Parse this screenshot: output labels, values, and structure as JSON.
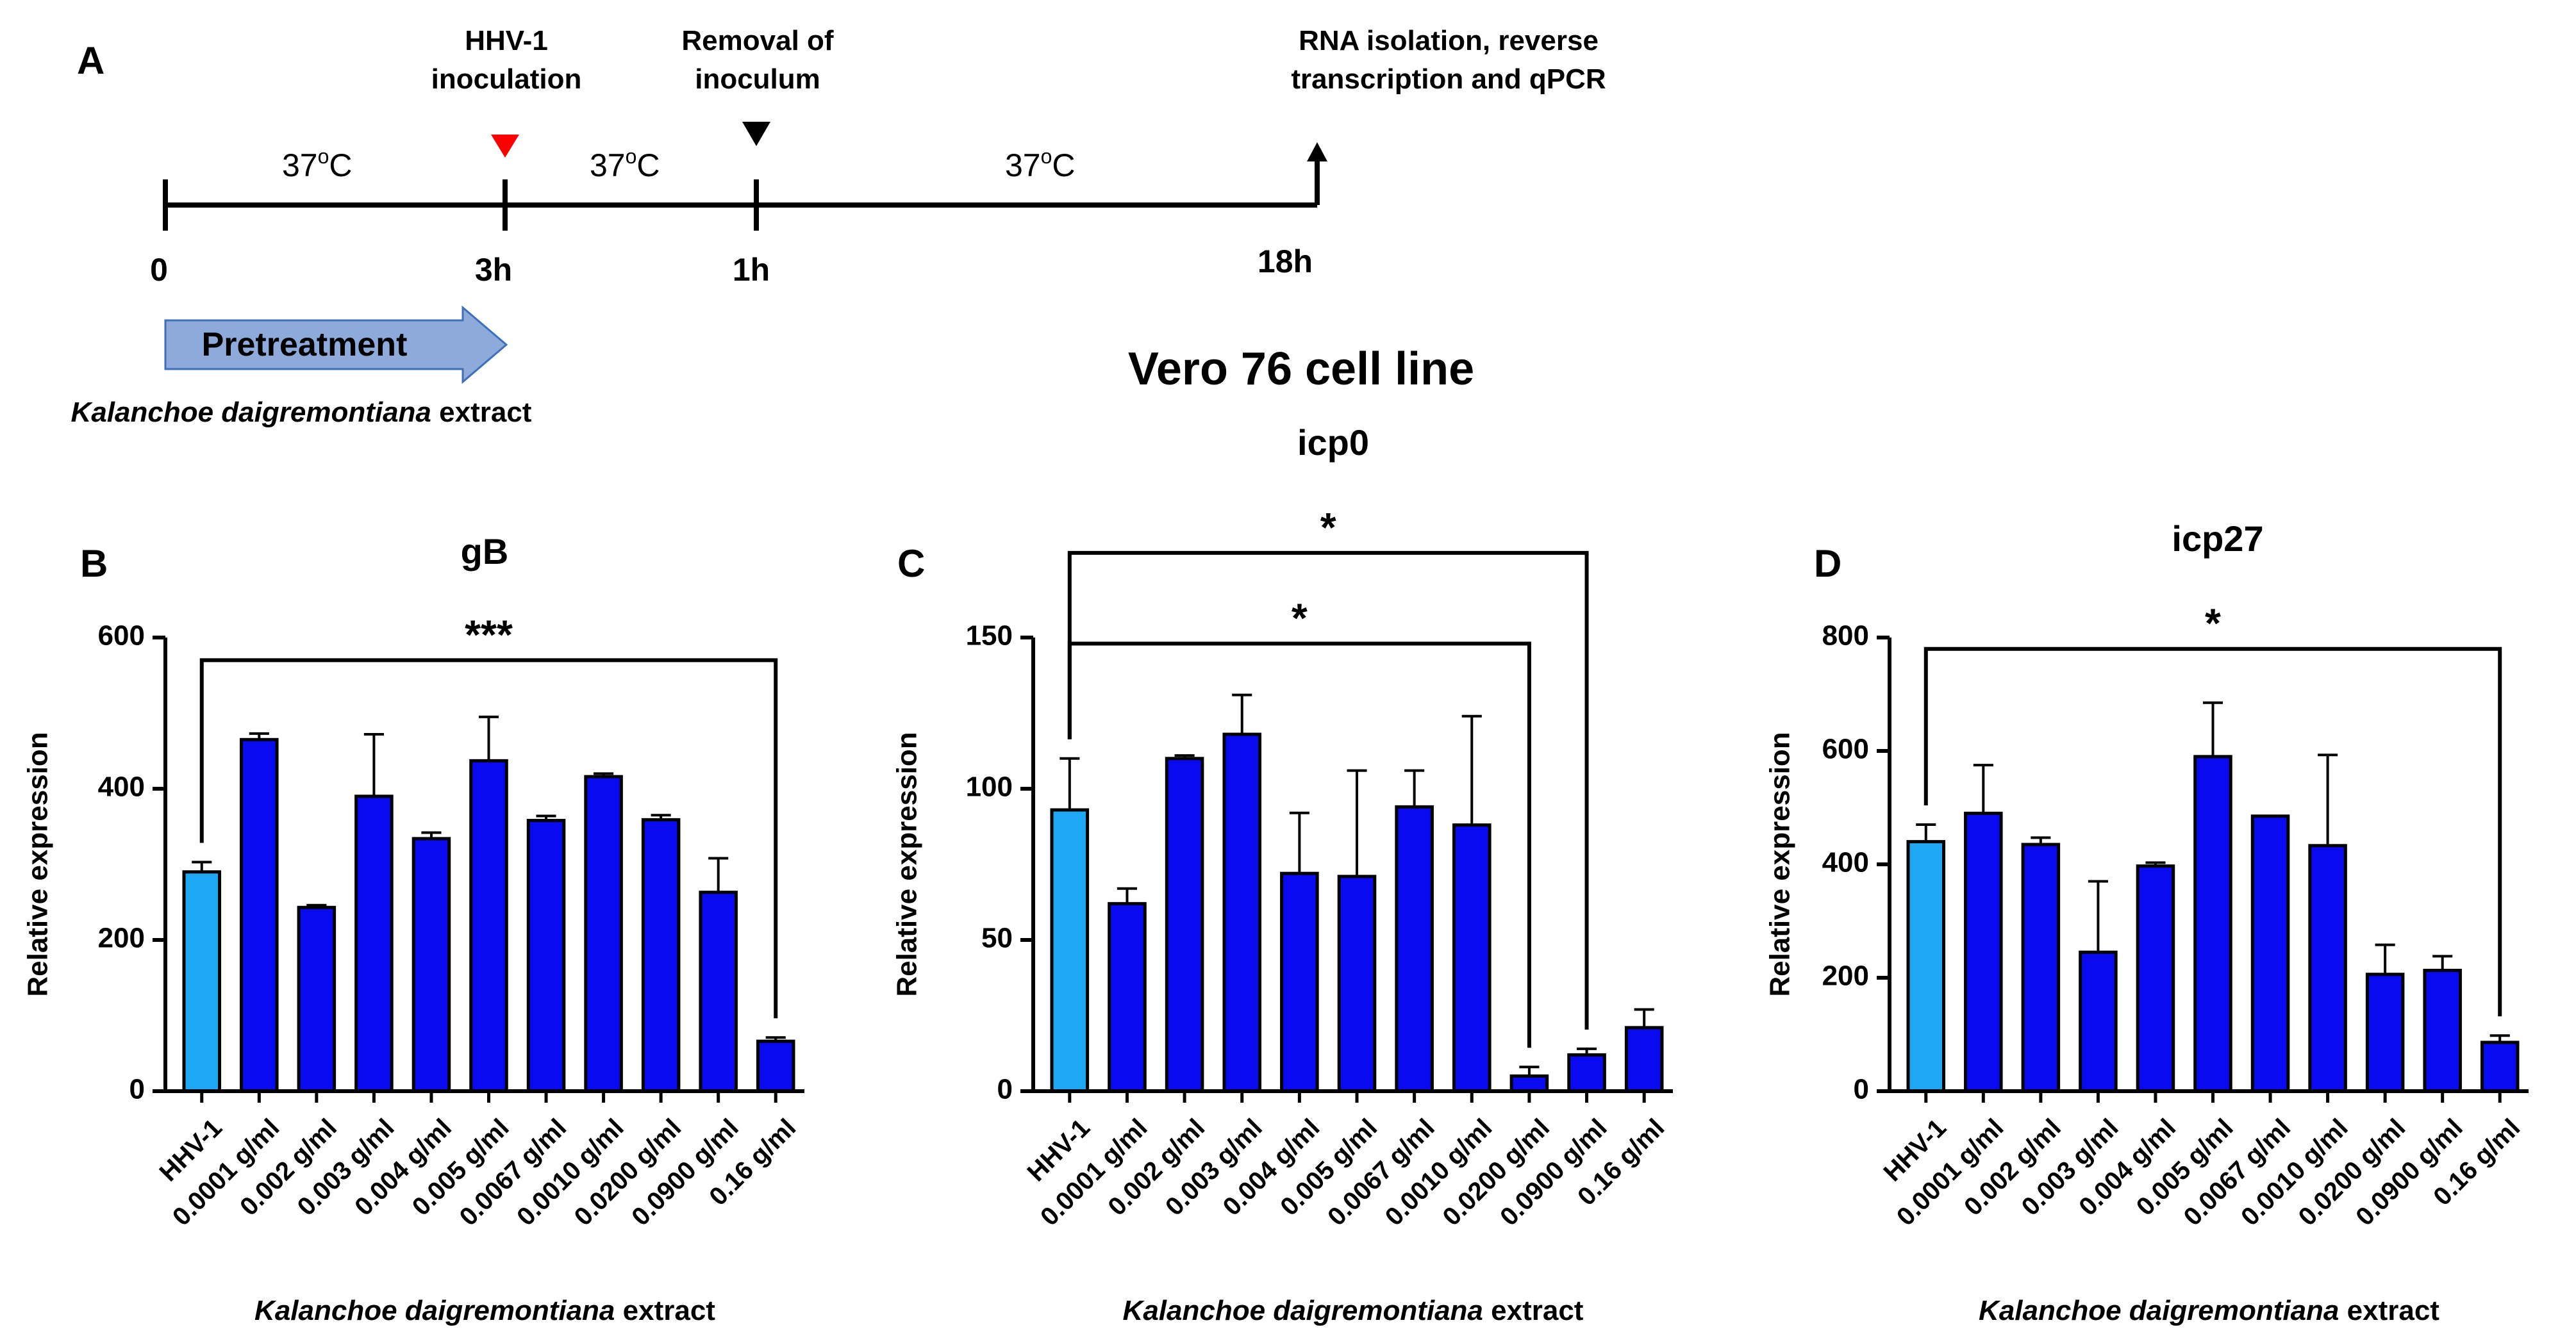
{
  "panel_labels": {
    "a": "A",
    "b": "B",
    "c": "C",
    "d": "D"
  },
  "timeline": {
    "events": [
      {
        "label_lines": [
          "HHV-1",
          "inoculation"
        ],
        "marker_color": "#ff0000"
      },
      {
        "label_lines": [
          "Removal of",
          "inoculum"
        ],
        "marker_color": "#000000"
      },
      {
        "label_lines": [
          "RNA isolation, reverse",
          "transcription and qPCR"
        ]
      }
    ],
    "temperatures": [
      "37",
      "37",
      "37"
    ],
    "temperature_unit_sup": "o",
    "temperature_unit": "C",
    "time_labels": [
      "0",
      "3h",
      "1h",
      "18h"
    ],
    "pretreatment_label": "Pretreatment",
    "pretreatment_color": "#8eaadb",
    "extract_label_italic": "Kalanchoe daigremontiana",
    "extract_label_suffix": " extract"
  },
  "figure_title": "Vero 76 cell line",
  "colors": {
    "control_bar": "#1ea7f2",
    "treatment_bar": "#0a0af0"
  },
  "chart_data": [
    {
      "panel": "B",
      "type": "bar",
      "title": "gB",
      "ylabel": "Relative expression",
      "xlabel_italic": "Kalanchoe daigremontiana",
      "xlabel_suffix": " extract",
      "categories": [
        "HHV-1",
        "0.0001 g/ml",
        "0.002 g/ml",
        "0.003 g/ml",
        "0.004 g/ml",
        "0.005 g/ml",
        "0.0067 g/ml",
        "0.0010 g/ml",
        "0.0200 g/ml",
        "0.0900 g/ml",
        "0.16 g/ml"
      ],
      "values": [
        290,
        465,
        243,
        390,
        334,
        437,
        358,
        416,
        359,
        263,
        66
      ],
      "errors": [
        13,
        8,
        3,
        82,
        8,
        58,
        6,
        4,
        6,
        45,
        5
      ],
      "ylim": [
        0,
        600
      ],
      "yticks": [
        0,
        200,
        400,
        600
      ],
      "significance": [
        {
          "from": 0,
          "to": 10,
          "label": "***",
          "bracket_y": 570
        }
      ]
    },
    {
      "panel": "C",
      "type": "bar",
      "title": "icp0",
      "ylabel": "Relative expression",
      "xlabel_italic": "Kalanchoe daigremontiana",
      "xlabel_suffix": " extract",
      "categories": [
        "HHV-1",
        "0.0001 g/ml",
        "0.002 g/ml",
        "0.003 g/ml",
        "0.004 g/ml",
        "0.005 g/ml",
        "0.0067 g/ml",
        "0.0010 g/ml",
        "0.0200 g/ml",
        "0.0900 g/ml",
        "0.16 g/ml"
      ],
      "values": [
        93,
        62,
        110,
        118,
        72,
        71,
        94,
        88,
        5,
        12,
        21
      ],
      "errors": [
        17,
        5,
        1,
        13,
        20,
        35,
        12,
        36,
        3,
        2,
        6
      ],
      "ylim": [
        0,
        150
      ],
      "yticks": [
        0,
        50,
        100,
        150
      ],
      "significance": [
        {
          "from": 0,
          "to": 8,
          "label": "*",
          "bracket_y": 148
        },
        {
          "from": 0,
          "to": 9,
          "label": "*",
          "bracket_y": 178
        }
      ]
    },
    {
      "panel": "D",
      "type": "bar",
      "title": "icp27",
      "ylabel": "Relative expression",
      "xlabel_italic": "Kalanchoe daigremontiana",
      "xlabel_suffix": " extract",
      "categories": [
        "HHV-1",
        "0.0001 g/ml",
        "0.002 g/ml",
        "0.003 g/ml",
        "0.004 g/ml",
        "0.005 g/ml",
        "0.0067 g/ml",
        "0.0010 g/ml",
        "0.0200 g/ml",
        "0.0900 g/ml",
        "0.16 g/ml"
      ],
      "values": [
        440,
        490,
        435,
        245,
        397,
        590,
        485,
        433,
        206,
        213,
        86
      ],
      "errors": [
        30,
        85,
        12,
        125,
        6,
        95,
        0,
        160,
        52,
        25,
        12
      ],
      "ylim": [
        0,
        800
      ],
      "yticks": [
        0,
        200,
        400,
        600,
        800
      ],
      "significance": [
        {
          "from": 0,
          "to": 10,
          "label": "*",
          "bracket_y": 780
        }
      ]
    }
  ]
}
